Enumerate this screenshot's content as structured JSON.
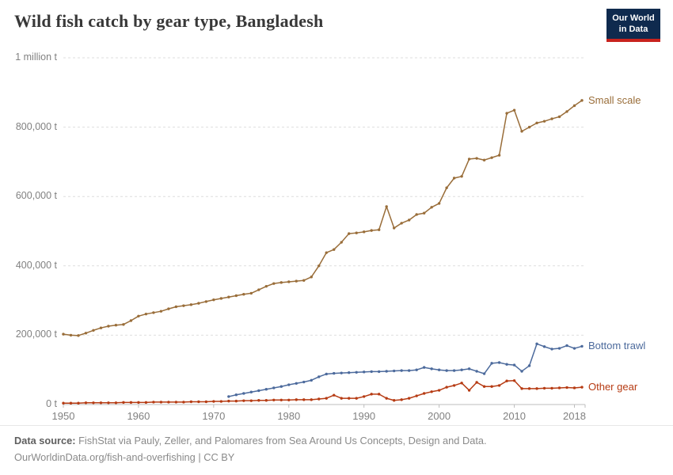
{
  "header": {
    "title": "Wild fish catch by gear type, Bangladesh",
    "logo_line1": "Our World",
    "logo_line2": "in Data"
  },
  "colors": {
    "logo_navy": "#0f2a4e",
    "logo_red": "#c8231e",
    "grid": "#dedede",
    "axis": "#bdbdbd",
    "tick_text": "#818181",
    "title_text": "#383838"
  },
  "chart_data": {
    "type": "line",
    "title": "Wild fish catch by gear type, Bangladesh",
    "unit": "t",
    "xlabel": "",
    "ylabel": "",
    "xlim": [
      1950,
      2019
    ],
    "ylim": [
      0,
      1000000
    ],
    "grid": "horizontal-dashed",
    "legend_position": "line-end-labels",
    "x_ticks": [
      1950,
      1960,
      1970,
      1980,
      1990,
      2000,
      2010,
      2018
    ],
    "y_ticks": [
      {
        "value": 0,
        "label": "0 t"
      },
      {
        "value": 200000,
        "label": "200,000 t"
      },
      {
        "value": 400000,
        "label": "400,000 t"
      },
      {
        "value": 600000,
        "label": "600,000 t"
      },
      {
        "value": 800000,
        "label": "800,000 t"
      },
      {
        "value": 1000000,
        "label": "1 million t"
      }
    ],
    "series": [
      {
        "name": "Small scale",
        "color": "#996d39",
        "years": [
          1950,
          1951,
          1952,
          1953,
          1954,
          1955,
          1956,
          1957,
          1958,
          1959,
          1960,
          1961,
          1962,
          1963,
          1964,
          1965,
          1966,
          1967,
          1968,
          1969,
          1970,
          1971,
          1972,
          1973,
          1974,
          1975,
          1976,
          1977,
          1978,
          1979,
          1980,
          1981,
          1982,
          1983,
          1984,
          1985,
          1986,
          1987,
          1988,
          1989,
          1990,
          1991,
          1992,
          1993,
          1994,
          1995,
          1996,
          1997,
          1998,
          1999,
          2000,
          2001,
          2002,
          2003,
          2004,
          2005,
          2006,
          2007,
          2008,
          2009,
          2010,
          2011,
          2012,
          2013,
          2014,
          2015,
          2016,
          2017,
          2018,
          2019
        ],
        "values": [
          203000,
          200000,
          199000,
          206000,
          214000,
          221000,
          226000,
          229000,
          231000,
          242000,
          255000,
          261000,
          265000,
          269000,
          276000,
          282000,
          285000,
          288000,
          292000,
          297000,
          302000,
          306000,
          310000,
          314000,
          318000,
          321000,
          331000,
          341000,
          349000,
          352000,
          354000,
          356000,
          358000,
          368000,
          400000,
          438000,
          447000,
          468000,
          493000,
          495000,
          498000,
          502000,
          504000,
          571000,
          509000,
          523000,
          532000,
          548000,
          552000,
          569000,
          580000,
          625000,
          653000,
          658000,
          708000,
          710000,
          705000,
          712000,
          719000,
          840000,
          849000,
          788000,
          800000,
          812000,
          817000,
          824000,
          830000,
          845000,
          862000,
          877000
        ]
      },
      {
        "name": "Bottom trawl",
        "color": "#4c6a9c",
        "years": [
          1972,
          1973,
          1974,
          1975,
          1976,
          1977,
          1978,
          1979,
          1980,
          1981,
          1982,
          1983,
          1984,
          1985,
          1986,
          1987,
          1988,
          1989,
          1990,
          1991,
          1992,
          1993,
          1994,
          1995,
          1996,
          1997,
          1998,
          1999,
          2000,
          2001,
          2002,
          2003,
          2004,
          2005,
          2006,
          2007,
          2008,
          2009,
          2010,
          2011,
          2012,
          2013,
          2014,
          2015,
          2016,
          2017,
          2018,
          2019
        ],
        "values": [
          23000,
          28000,
          32000,
          36000,
          40000,
          44000,
          48000,
          52000,
          57000,
          61000,
          65000,
          70000,
          80000,
          88000,
          90000,
          91000,
          92000,
          93000,
          94000,
          95000,
          95000,
          96000,
          97000,
          98000,
          98000,
          100000,
          107000,
          103000,
          100000,
          98000,
          98000,
          100000,
          103000,
          96000,
          89000,
          119000,
          121000,
          116000,
          114000,
          96000,
          112000,
          175000,
          167000,
          160000,
          162000,
          170000,
          162000,
          168000
        ]
      },
      {
        "name": "Other gear",
        "color": "#b63b13",
        "years": [
          1950,
          1951,
          1952,
          1953,
          1954,
          1955,
          1956,
          1957,
          1958,
          1959,
          1960,
          1961,
          1962,
          1963,
          1964,
          1965,
          1966,
          1967,
          1968,
          1969,
          1970,
          1971,
          1972,
          1973,
          1974,
          1975,
          1976,
          1977,
          1978,
          1979,
          1980,
          1981,
          1982,
          1983,
          1984,
          1985,
          1986,
          1987,
          1988,
          1989,
          1990,
          1991,
          1992,
          1993,
          1994,
          1995,
          1996,
          1997,
          1998,
          1999,
          2000,
          2001,
          2002,
          2003,
          2004,
          2005,
          2006,
          2007,
          2008,
          2009,
          2010,
          2011,
          2012,
          2013,
          2014,
          2015,
          2016,
          2017,
          2018,
          2019
        ],
        "values": [
          4000,
          4000,
          4000,
          5000,
          5000,
          5000,
          5000,
          5000,
          6000,
          6000,
          6000,
          6000,
          7000,
          7000,
          7000,
          7000,
          7000,
          8000,
          8000,
          8000,
          9000,
          9000,
          10000,
          10000,
          11000,
          11000,
          12000,
          12000,
          13000,
          13000,
          13000,
          14000,
          14000,
          14000,
          16000,
          18000,
          27000,
          18000,
          18000,
          18000,
          23000,
          30000,
          30000,
          18000,
          12000,
          14000,
          18000,
          25000,
          32000,
          37000,
          41000,
          50000,
          55000,
          62000,
          41000,
          64000,
          52000,
          52000,
          55000,
          68000,
          69000,
          46000,
          46000,
          46000,
          47000,
          47000,
          48000,
          49000,
          48000,
          50000
        ]
      }
    ]
  },
  "footer": {
    "source_label": "Data source:",
    "source_text": "FishStat via Pauly, Zeller, and Palomares from Sea Around Us Concepts, Design and Data.",
    "link": "OurWorldinData.org/fish-and-overfishing",
    "separator": " | ",
    "license": "CC BY"
  }
}
